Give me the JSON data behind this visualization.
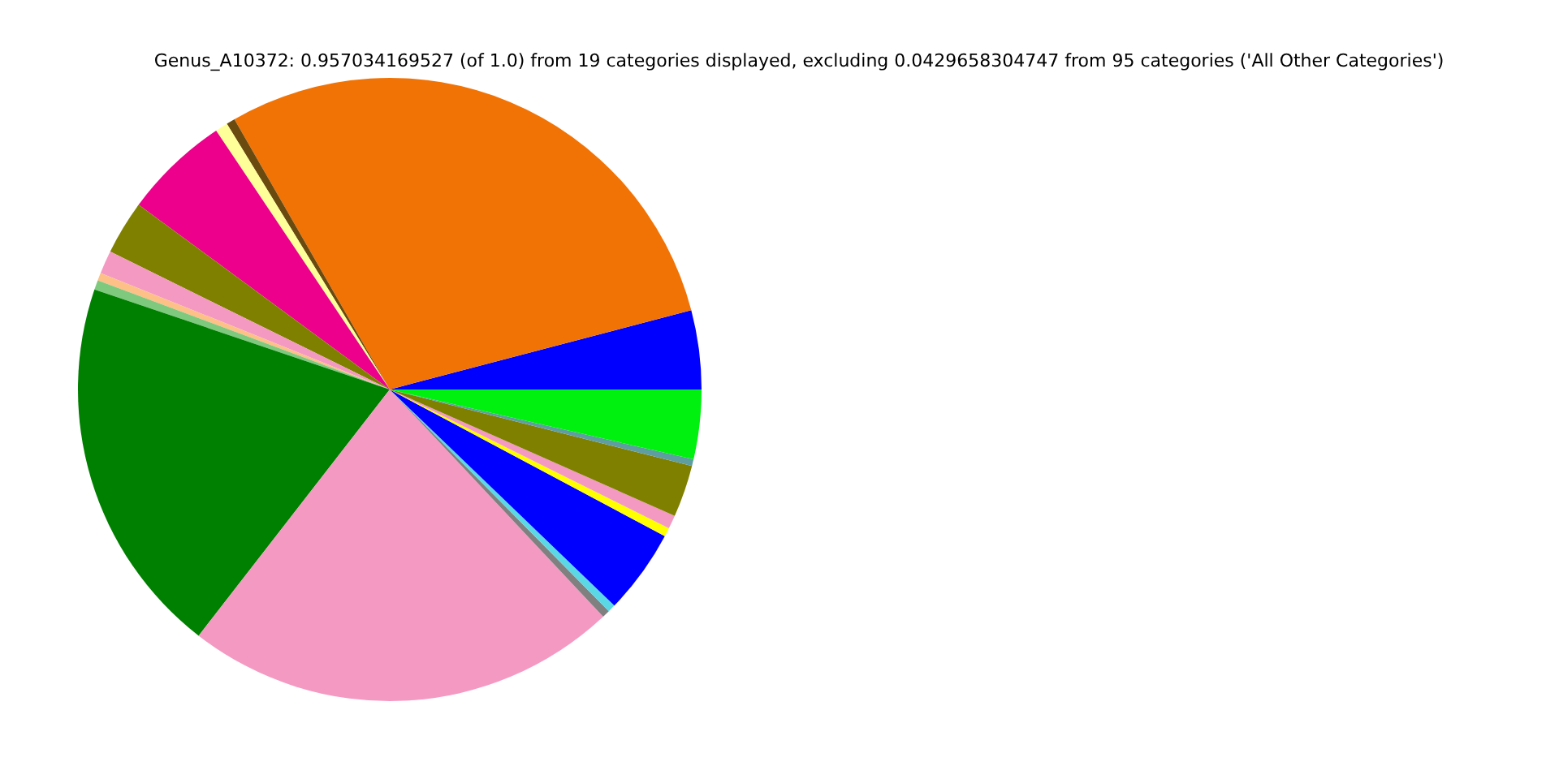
{
  "chart_data": {
    "type": "pie",
    "title": "Genus_A10372: 0.957034169527 (of 1.0) from 19 categories displayed, excluding 0.0429658304747 from 95 categories ('All Other Categories')",
    "categories": [
      null,
      null,
      null,
      null,
      null,
      null,
      null,
      null,
      null,
      null,
      null,
      null,
      null,
      null,
      null,
      null,
      null,
      null,
      null
    ],
    "values": [
      4.1,
      29.2,
      0.45,
      0.65,
      5.5,
      2.8,
      1.2,
      0.4,
      0.5,
      19.7,
      22.5,
      0.4,
      0.4,
      4.4,
      0.45,
      0.7,
      2.7,
      0.35,
      3.6
    ],
    "colors": [
      "#0000ff",
      "#f27305",
      "#6b4a0f",
      "#ffff99",
      "#ec008c",
      "#808000",
      "#f49ac2",
      "#fdc086",
      "#7fc97f",
      "#008000",
      "#f49ac2",
      "#808080",
      "#5ad8e6",
      "#0000ff",
      "#ffff00",
      "#f49ac2",
      "#808000",
      "#5f9ea0",
      "#00f010"
    ],
    "legend": false
  }
}
